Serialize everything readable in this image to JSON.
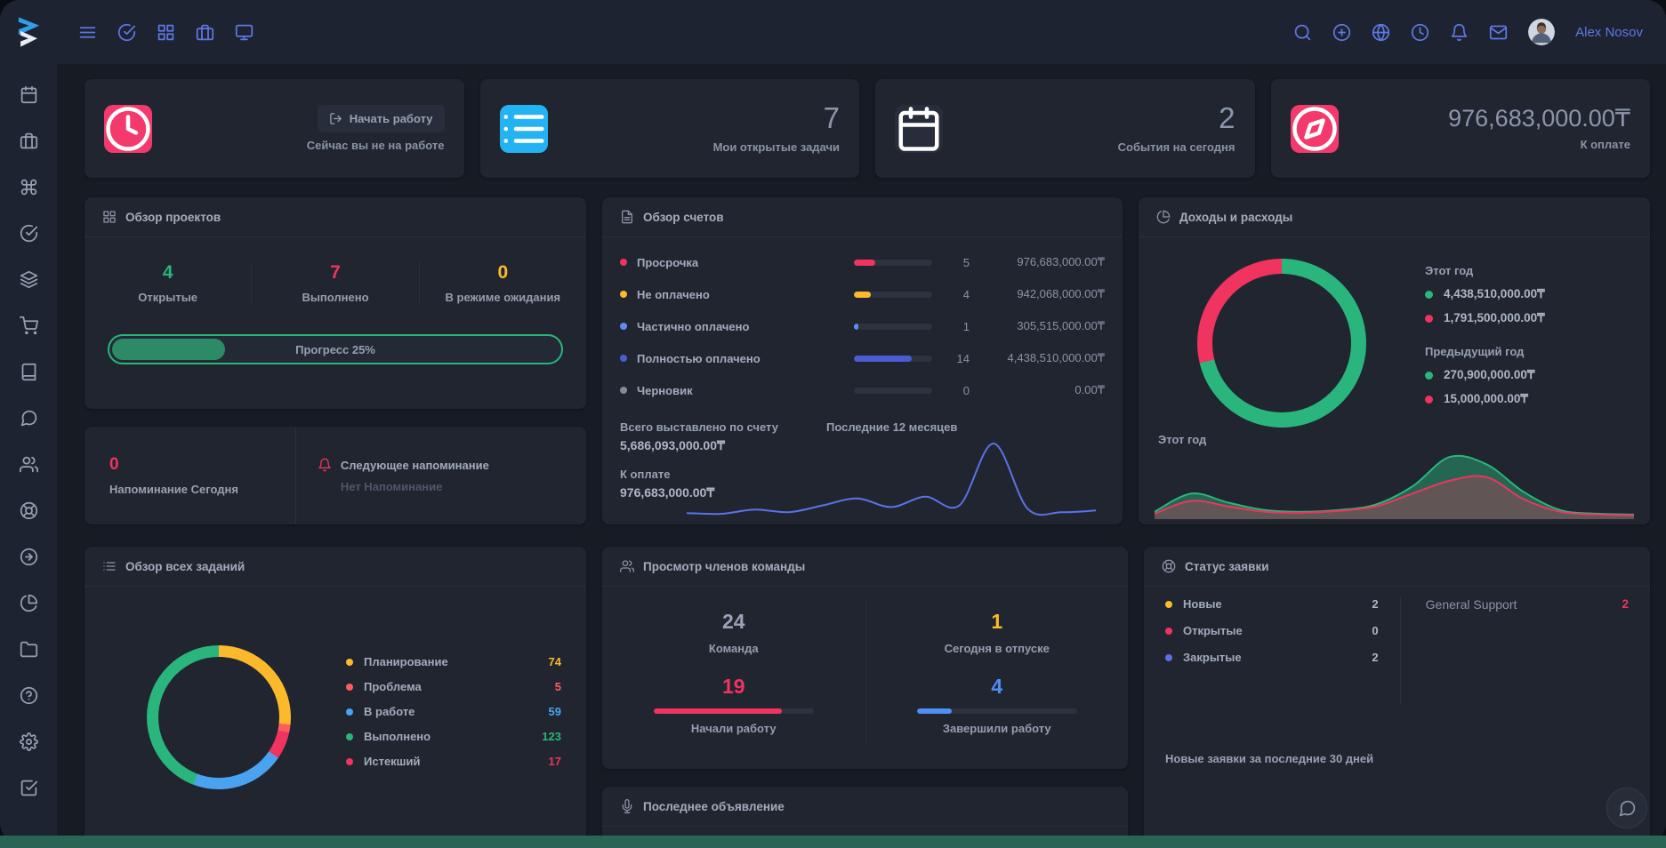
{
  "topbar": {
    "user_name": "Alex Nosov",
    "left_icons": [
      "hamburger-menu",
      "check-circle",
      "apps-grid",
      "briefcase",
      "monitor"
    ],
    "right_icons": [
      "search",
      "plus-circle",
      "globe",
      "clock",
      "bell",
      "mail"
    ]
  },
  "sidebar": {
    "icons": [
      "calendar",
      "briefcase",
      "command",
      "check-circle",
      "layers",
      "shopping-cart",
      "book",
      "message-circle",
      "users",
      "life-buoy",
      "arrow-right-circle",
      "pie-chart",
      "folder",
      "help-circle",
      "settings",
      "check-square"
    ]
  },
  "colors": {
    "accent_blue": "#5d78e5",
    "pink": "#f0335f",
    "green": "#2ab57d",
    "yellow": "#fdb92c",
    "sky": "#24b3f2"
  },
  "stat_cards": {
    "attendance": {
      "button_label": "Начать работу",
      "caption": "Сейчас вы не на работе"
    },
    "tasks": {
      "value": "7",
      "caption": "Мои открытые задачи"
    },
    "events": {
      "value": "2",
      "caption": "События на сегодня"
    },
    "payable": {
      "value": "976,683,000.00₸",
      "caption": "К оплате"
    }
  },
  "projects": {
    "title": "Обзор проектов",
    "stats": [
      {
        "value": "4",
        "label": "Открытые",
        "color": "#2ab57d"
      },
      {
        "value": "7",
        "label": "Выполнено",
        "color": "#f0335f"
      },
      {
        "value": "0",
        "label": "В режиме ожидания",
        "color": "#fdb92c"
      }
    ],
    "progress_label": "Прогресс 25%",
    "progress_percent": 25
  },
  "invoices": {
    "title": "Обзор счетов",
    "rows": [
      {
        "label": "Просрочка",
        "color": "#f0335f",
        "percent": 27,
        "count": "5",
        "amount": "976,683,000.00₸"
      },
      {
        "label": "Не оплачено",
        "color": "#fdb92c",
        "percent": 22,
        "count": "4",
        "amount": "942,068,000.00₸"
      },
      {
        "label": "Частично оплачено",
        "color": "#5f8bf5",
        "percent": 6,
        "count": "1",
        "amount": "305,515,000.00₸"
      },
      {
        "label": "Полностью оплачено",
        "color": "#4b5cd3",
        "percent": 74,
        "count": "14",
        "amount": "4,438,510,000.00₸"
      },
      {
        "label": "Черновик",
        "color": "#828b9d",
        "percent": 0,
        "count": "0",
        "amount": "0.00₸"
      }
    ],
    "total_label": "Всего выставлено по счету",
    "total_value": "5,686,093,000.00₸",
    "due_label": "К оплате",
    "due_value": "976,683,000.00₸",
    "chart": {
      "type": "line",
      "label": "Последние 12 месяцев",
      "series": [
        {
          "color": "#5b73e8",
          "fill": "none",
          "values": [
            5,
            4,
            9,
            6,
            14,
            22,
            12,
            24,
            14,
            86,
            10,
            6,
            8
          ]
        }
      ]
    }
  },
  "income": {
    "title": "Доходы и расходы",
    "donut": [
      {
        "color": "#2ab57d",
        "value": 71.2
      },
      {
        "color": "#f0335f",
        "value": 28.8
      }
    ],
    "this_year_label": "Этот год",
    "this_year": [
      {
        "color": "#2ab57d",
        "value": "4,438,510,000.00₸"
      },
      {
        "color": "#f0335f",
        "value": "1,791,500,000.00₸"
      }
    ],
    "prev_year_label": "Предыдущий год",
    "prev_year": [
      {
        "color": "#2ab57d",
        "value": "270,900,000.00₸"
      },
      {
        "color": "#f0335f",
        "value": "15,000,000.00₸"
      }
    ],
    "area_label": "Этот год",
    "chart": {
      "type": "area",
      "series": [
        {
          "color": "#2ab57d",
          "fill": "rgba(42,181,125,0.45)",
          "values": [
            6,
            26,
            16,
            8,
            6,
            8,
            14,
            34,
            66,
            58,
            28,
            8,
            4,
            3
          ]
        },
        {
          "color": "#f0335f",
          "fill": "rgba(240,51,95,0.30)",
          "values": [
            4,
            18,
            12,
            6,
            5,
            7,
            12,
            26,
            40,
            44,
            20,
            6,
            3,
            2
          ]
        }
      ]
    }
  },
  "reminder": {
    "count": "0",
    "count_color": "#f0335f",
    "count_label": "Напоминание Сегодня",
    "next_title": "Следующее напоминание",
    "next_value": "Нет Напоминание"
  },
  "tasks_overview": {
    "title": "Обзор всех заданий",
    "legend": [
      {
        "label": "Планирование",
        "value": "74",
        "color": "#fdb92c"
      },
      {
        "label": "Проблема",
        "value": "5",
        "color": "#fd5d5d"
      },
      {
        "label": "В работе",
        "value": "59",
        "color": "#4aa3f0"
      },
      {
        "label": "Выполнено",
        "value": "123",
        "color": "#2ab57d"
      },
      {
        "label": "Истекший",
        "value": "17",
        "color": "#f0335f"
      }
    ],
    "donut": [
      {
        "color": "#fdb92c",
        "value": 74
      },
      {
        "color": "#fd5d5d",
        "value": 5
      },
      {
        "color": "#f0335f",
        "value": 17
      },
      {
        "color": "#4aa3f0",
        "value": 59
      },
      {
        "color": "#2ab57d",
        "value": 123
      }
    ]
  },
  "team": {
    "title": "Просмотр членов команды",
    "cells": [
      {
        "value": "24",
        "label": "Команда",
        "color": "#9aa3b8"
      },
      {
        "value": "1",
        "label": "Сегодня в отпуске",
        "color": "#fdb92c"
      },
      {
        "value": "19",
        "label": "Начали работу",
        "color": "#f0335f",
        "percent": 80
      },
      {
        "value": "4",
        "label": "Завершили работу",
        "color": "#4f8ef7",
        "percent": 22
      }
    ]
  },
  "tickets": {
    "title": "Статус заявки",
    "legend": [
      {
        "label": "Новые",
        "value": "2",
        "color": "#fdb92c"
      },
      {
        "label": "Открытые",
        "value": "0",
        "color": "#f0335f"
      },
      {
        "label": "Закрытые",
        "value": "2",
        "color": "#5b6fe6"
      }
    ],
    "support_label": "General Support",
    "support_value": "2",
    "support_color": "#f0335f",
    "footer": "Новые заявки за последние 30 дней"
  },
  "announcement": {
    "title": "Последнее объявление"
  }
}
